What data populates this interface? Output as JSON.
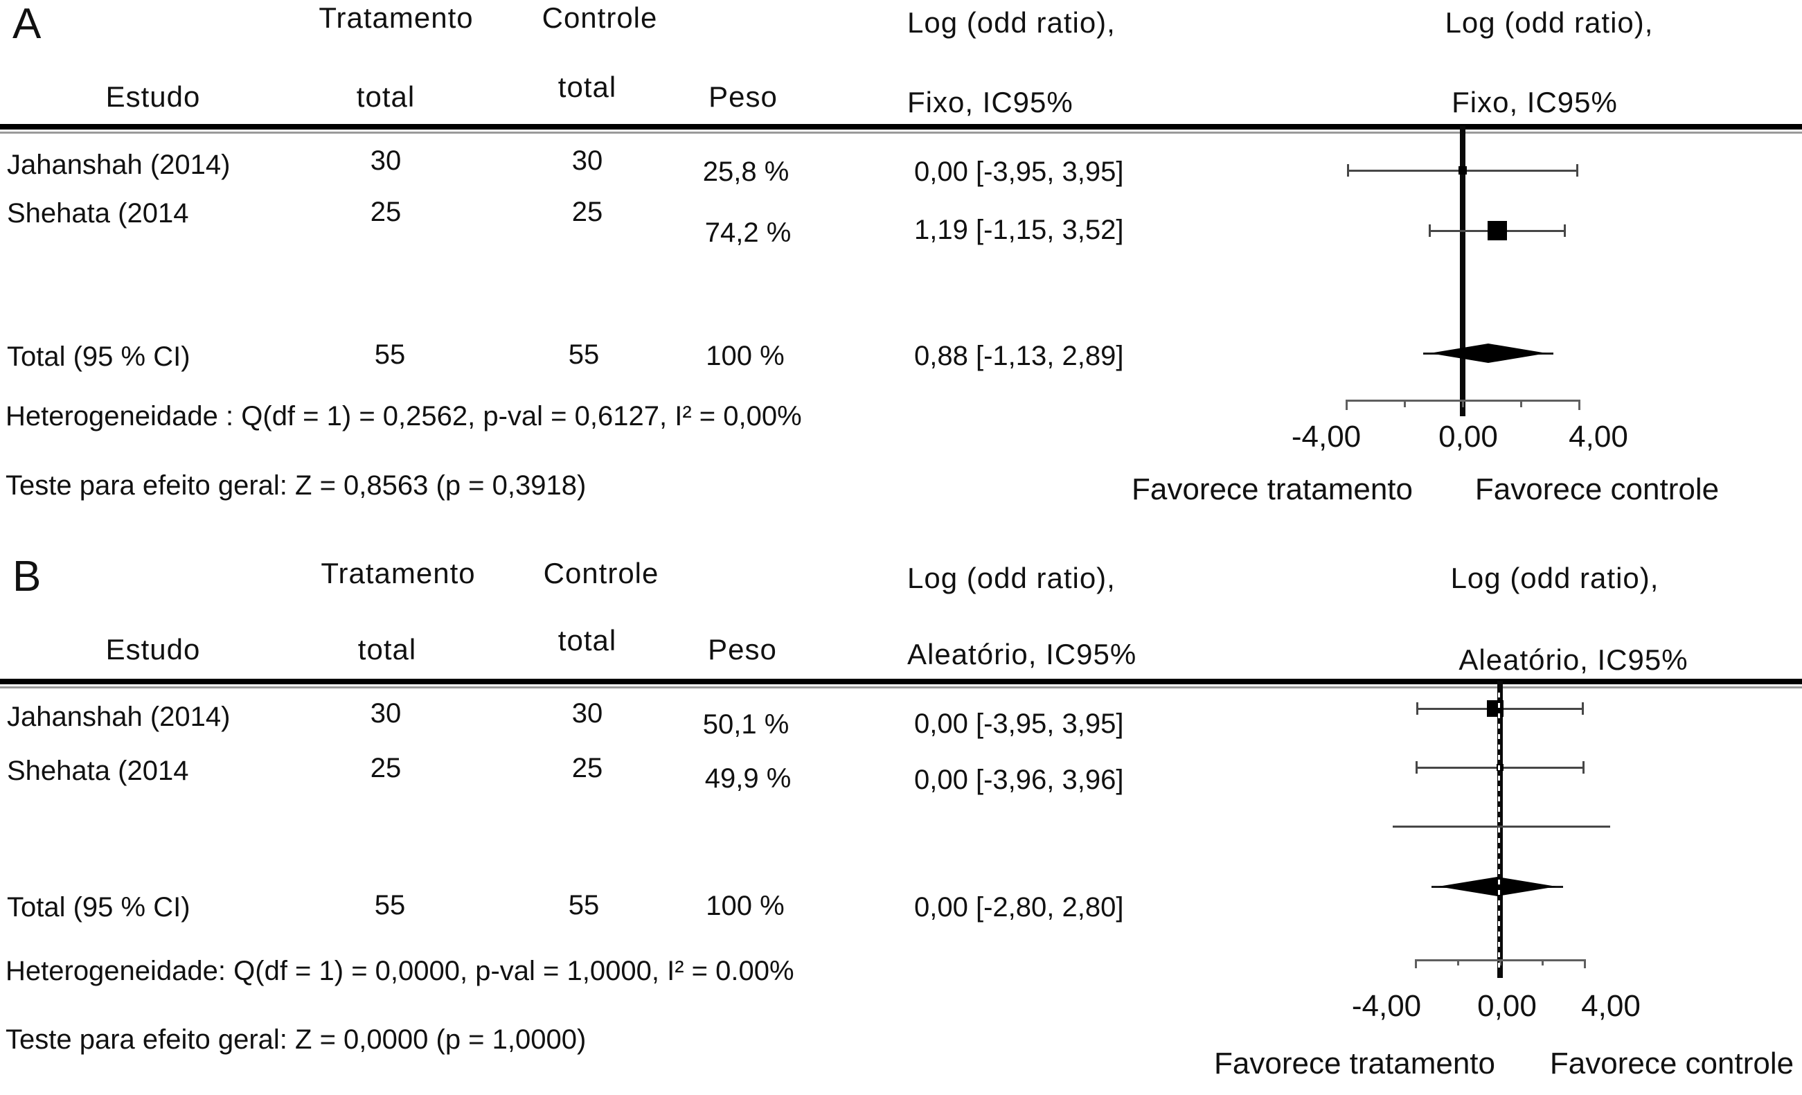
{
  "panels": [
    {
      "label": "A",
      "table": {
        "group_headers": {
          "treatment": "Tratamento",
          "control": "Controle"
        },
        "col_headers": {
          "study": "Estudo",
          "treatment_total": "total",
          "control_total": "total",
          "weight": "Peso",
          "effect_line1": "Log (odd ratio),",
          "effect_line2": "Fixo, IC95%"
        },
        "plot_headers": {
          "line1": "Log (odd ratio),",
          "line2": "Fixo, IC95%"
        },
        "rows": [
          {
            "study": "Jahanshah (2014)",
            "treatment_total": "30",
            "control_total": "30",
            "weight": "25,8 %",
            "effect": "0,00 [-3,95, 3,95]"
          },
          {
            "study": "Shehata (2014",
            "treatment_total": "25",
            "control_total": "25",
            "weight": "74,2 %",
            "effect": "1,19 [-1,15, 3,52]"
          }
        ],
        "total_row": {
          "study": "Total (95 % CI)",
          "treatment_total": "55",
          "control_total": "55",
          "weight": "100 %",
          "effect": "0,88 [-1,13, 2,89]"
        }
      },
      "footer": {
        "heterogeneity": "Heterogeneidade : Q(df = 1) = 0,2562, p-val = 0,6127, I² = 0,00%",
        "overall_test": "Teste para efeito geral: Z = 0,8563 (p = 0,3918)"
      },
      "axis": {
        "tick_labels": [
          "-4,00",
          "0,00",
          "4,00"
        ],
        "favor_left": "Favorece tratamento",
        "favor_right": "Favorece controle"
      }
    },
    {
      "label": "B",
      "table": {
        "group_headers": {
          "treatment": "Tratamento",
          "control": "Controle"
        },
        "col_headers": {
          "study": "Estudo",
          "treatment_total": "total",
          "control_total": "total",
          "weight": "Peso",
          "effect_line1": "Log (odd ratio),",
          "effect_line2": "Aleatório, IC95%"
        },
        "plot_headers": {
          "line1": "Log (odd ratio),",
          "line2": "Aleatório, IC95%"
        },
        "rows": [
          {
            "study": "Jahanshah (2014)",
            "treatment_total": "30",
            "control_total": "30",
            "weight": "50,1 %",
            "effect": "0,00 [-3,95, 3,95]"
          },
          {
            "study": "Shehata (2014",
            "treatment_total": "25",
            "control_total": "25",
            "weight": "49,9 %",
            "effect": "0,00 [-3,96, 3,96]"
          }
        ],
        "total_row": {
          "study": "Total (95 % CI)",
          "treatment_total": "55",
          "control_total": "55",
          "weight": "100 %",
          "effect": "0,00 [-2,80, 2,80]"
        }
      },
      "footer": {
        "heterogeneity": "Heterogeneidade: Q(df = 1) = 0,0000, p-val = 1,0000, I² = 0.00%",
        "overall_test": "Teste para efeito geral: Z = 0,0000 (p = 1,0000)"
      },
      "axis": {
        "tick_labels": [
          "-4,00",
          "0,00",
          "4,00"
        ],
        "favor_left": "Favorece tratamento",
        "favor_right": "Favorece controle"
      }
    }
  ],
  "chart_data": [
    {
      "type": "forest",
      "panel": "A",
      "model": "Fixo (fixed effect), Log (odd ratio), IC95%",
      "x_axis": {
        "ticks": [
          -4,
          -2,
          0,
          2,
          4
        ],
        "labeled_ticks": [
          -4,
          0,
          4
        ],
        "tick_labels": [
          "-4,00",
          "0,00",
          "4,00"
        ],
        "xlim": [
          -4,
          4
        ]
      },
      "studies": [
        {
          "name": "Jahanshah (2014)",
          "treatment_total": 30,
          "control_total": 30,
          "weight_pct": 25.8,
          "log_or": 0.0,
          "ci95": [
            -3.95,
            3.95
          ]
        },
        {
          "name": "Shehata (2014",
          "treatment_total": 25,
          "control_total": 25,
          "weight_pct": 74.2,
          "log_or": 1.19,
          "ci95": [
            -1.15,
            3.52
          ]
        }
      ],
      "total": {
        "name": "Total (95 % CI)",
        "treatment_total": 55,
        "control_total": 55,
        "weight_pct": 100,
        "log_or": 0.88,
        "ci95": [
          -1.13,
          2.89
        ]
      },
      "heterogeneity": {
        "Q": 0.2562,
        "df": 1,
        "p_val": 0.6127,
        "I2_pct": 0.0
      },
      "overall_effect": {
        "Z": 0.8563,
        "p": 0.3918
      },
      "favor_left": "Favorece tratamento",
      "favor_right": "Favorece controle"
    },
    {
      "type": "forest",
      "panel": "B",
      "model": "Aleatório (random effects), Log (odd ratio), IC95%",
      "x_axis": {
        "ticks": [
          -4,
          -2,
          0,
          2,
          4
        ],
        "labeled_ticks": [
          -4,
          0,
          4
        ],
        "tick_labels": [
          "-4,00",
          "0,00",
          "4,00"
        ],
        "xlim": [
          -4,
          4
        ]
      },
      "studies": [
        {
          "name": "Jahanshah (2014)",
          "treatment_total": 30,
          "control_total": 30,
          "weight_pct": 50.1,
          "log_or": 0.0,
          "ci95": [
            -3.95,
            3.95
          ]
        },
        {
          "name": "Shehata (2014",
          "treatment_total": 25,
          "control_total": 25,
          "weight_pct": 49.9,
          "log_or": 0.0,
          "ci95": [
            -3.96,
            3.96
          ]
        }
      ],
      "extra_unlabeled_line": true,
      "total": {
        "name": "Total (95 % CI)",
        "treatment_total": 55,
        "control_total": 55,
        "weight_pct": 100,
        "log_or": 0.0,
        "ci95": [
          -2.8,
          2.8
        ]
      },
      "heterogeneity": {
        "Q": 0.0,
        "df": 1,
        "p_val": 1.0,
        "I2_pct": 0.0
      },
      "overall_effect": {
        "Z": 0.0,
        "p": 1.0
      },
      "favor_left": "Favorece tratamento",
      "favor_right": "Favorece controle"
    }
  ]
}
